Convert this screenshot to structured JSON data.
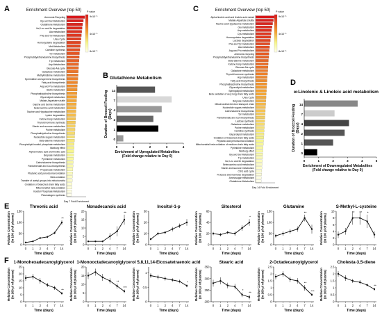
{
  "panels": {
    "A": "A",
    "B": "B",
    "C": "C",
    "D": "D",
    "E": "E",
    "F": "F"
  },
  "colors": {
    "enrich_high": "#d7191c",
    "enrich_mid": "#f3a030",
    "enrich_low": "#f6f68c",
    "enrich_vlow": "#ffffea",
    "bar_dark": "#333333",
    "line": "#111111"
  },
  "chart_data": [
    {
      "id": "A",
      "type": "bar",
      "orientation": "horizontal",
      "title": "Enrichment Overview (top 50)",
      "xlabel": "Day 7 Fold Enrichment",
      "legend": {
        "title": "P value",
        "ticks": [
          "9x10⁻¹",
          "4x10⁻¹",
          "8x10⁻¹"
        ],
        "placement": "top-right"
      },
      "categories": [
        "Ammonia Recycling",
        "Gly and Ser Metabolism",
        "Glutathione Metabolism",
        "Val, Leu and Ile degradation",
        "Ala metabolism",
        "Phe and Tyr Metabolism",
        "Urea Cycle",
        "Homocysteine degradation",
        "Met Metabolism",
        "Carnitine synthesis",
        "Tyr metabolism",
        "Phosphatidylethanolamine biosynthesis",
        "Trp metabolism",
        "Asp Metabolism",
        "Glucose-Ala cycle",
        "Galactose metabolism",
        "Methylhistidine metabolism",
        "Spermidine and spermine biosynthesis",
        "Fatty acid biosynthesis",
        "Arg and Pro metabolism",
        "Biotin metabolism",
        "Phosphatidylcholine biosynthesis",
        "Glycerolipid metabolism",
        "Malate-Aspartate shuttle",
        "Glycine and Serine metabolism",
        "Selenoamino acid metabolism",
        "Taurine and Hypotaurine metabolism",
        "Lysine degradation",
        "Ketone body metabolism",
        "Thyroid hormone synthesis",
        "Starch and sucrose metabolism",
        "Purine metabolism",
        "Phosphatidylcholine biosynthesis",
        "Nucleotide sugars metabolism",
        "Beta-alanine metabolism",
        "Phospholipid inositol phosphate metabolism",
        "Warburg effect",
        "Alpha linoleic acid and linoleic acid",
        "Butyrate metabolism",
        "Pyrimidine metabolism",
        "Catecholamine biosynthesis",
        "Pantothenate and CoA biosynthesis",
        "Propanoate metabolism",
        "Phytanic acid peroxisomal oxidation",
        "Beta oxidation",
        "Transfer of acetyl groups into mitochondria",
        "Oxidation of branched chain fatty acids",
        "Mitochondrial beta oxidation",
        "Inositol Phosphate Metabolism",
        "Plasmalogen synthesis"
      ],
      "values": [
        9.3,
        8.6,
        8.2,
        8.0,
        7.8,
        7.6,
        7.4,
        7.2,
        7.0,
        6.8,
        6.6,
        6.5,
        6.4,
        6.2,
        6.1,
        6.0,
        5.9,
        5.8,
        5.6,
        5.5,
        5.4,
        5.3,
        5.2,
        5.1,
        5.0,
        4.9,
        4.8,
        4.7,
        4.6,
        4.5,
        4.4,
        4.3,
        4.2,
        4.1,
        4.0,
        3.9,
        3.8,
        3.7,
        3.6,
        3.5,
        3.4,
        3.3,
        3.2,
        3.1,
        3.0,
        2.9,
        2.8,
        2.7,
        2.6,
        2.5
      ],
      "xlim": [
        0,
        10
      ]
    },
    {
      "id": "B",
      "type": "bar",
      "orientation": "horizontal",
      "title": "Glutathione Metabolism",
      "xlabel": "Enrichment of Upregulated Metabolites",
      "xlabel2": "(Fold change relative to Day 0)",
      "ylabel": "Duration of Broccoli Feeding",
      "ylabel2": "(Days)",
      "categories": [
        "14",
        "7",
        "4",
        "2",
        "1",
        "0"
      ],
      "values": [
        2.3,
        3.3,
        2.7,
        2.2,
        2.5,
        0.4
      ],
      "bar_colors": [
        "#555555",
        "#d8d8d8",
        "#999999",
        "#666666",
        "#000000",
        "#999999"
      ],
      "xticks": [
        "0",
        "1",
        "2",
        "3",
        "4"
      ],
      "xlim": [
        0,
        4
      ]
    },
    {
      "id": "C",
      "type": "bar",
      "orientation": "horizontal",
      "title": "Enrichment Overview (top 50)",
      "xlabel": "Day 14 Fold Enrichment",
      "legend": {
        "title": "P value",
        "ticks": [
          "9x10⁻¹",
          "4x10⁻¹",
          "8x10⁻¹"
        ],
        "placement": "top-right"
      },
      "categories": [
        "Alpha linoleic acid and linoleic acid metab",
        "Malate-Aspartate shuttle",
        "Taurine and Hypotaurine metabolism",
        "Glu metabolism",
        "Asp metabolism",
        "Cys metabolism",
        "Homocysteine degradation",
        "Lactose degradation",
        "Phe and Tyr metabolism",
        "Ala metabolism",
        "Arg and Pro metabolism",
        "Ammonia recycling",
        "Phosphatidylethanolamine biosynthesis",
        "Beta-alanine metabolism",
        "Ketone body metabolism",
        "Glucose-Ala cycle",
        "Galactose metabolism",
        "Thyroid hormone synthesis",
        "Asp metabolism",
        "Fatty acid biosynthesis",
        "Phosphatidylcholine biosynthesis",
        "Glycerolipid metabolism",
        "Sphingolipid metabolism",
        "Beta oxidation of very long chain fatty acids",
        "Urea Cycle",
        "Butyrate metabolism",
        "Mitochondrial electron transport chain",
        "Nucleotide sugars metabolism",
        "Catecholamine biosynthesis",
        "Tyr metabolism",
        "Pantothenate and CoA biosynthesis",
        "Lactose synthesis",
        "Galactose metabolism",
        "Purine metabolism",
        "Carnitine synthesis",
        "Glycerolipid metabolism",
        "Oxidation of branched chain fatty acids",
        "Phytanic acid peroxisomal oxidation",
        "Mitochondrial beta oxidation of medium chain fatty acids",
        "Pyrimidine metabolism",
        "Warburg effect",
        "Gly and Ser Metabolism",
        "Trp metabolism",
        "Val, Leu and Ile degradation",
        "Selenoamino acid metabolism",
        "Starch and sucrose metabolism",
        "Citric acid cycle",
        "Fructose and mannose degradation",
        "Aminosugar metabolism",
        "Glutathione Metabolism"
      ],
      "values": [
        9.8,
        9.2,
        8.8,
        8.5,
        8.2,
        8.0,
        7.8,
        7.6,
        7.4,
        7.2,
        7.0,
        6.9,
        6.8,
        6.6,
        6.5,
        6.4,
        6.3,
        6.2,
        6.0,
        5.9,
        5.8,
        5.7,
        5.6,
        5.5,
        5.4,
        5.3,
        5.2,
        5.1,
        5.0,
        4.9,
        4.8,
        4.7,
        4.6,
        4.5,
        4.4,
        4.3,
        4.2,
        4.1,
        4.0,
        3.9,
        3.8,
        3.7,
        3.6,
        3.5,
        3.4,
        3.3,
        3.2,
        3.1,
        3.0,
        2.9
      ],
      "xlim": [
        0,
        10
      ]
    },
    {
      "id": "D",
      "type": "bar",
      "orientation": "horizontal",
      "title": "α-Linolenic & Linoleic acid metabolism",
      "xlabel": "Enrichment of Downregulated Metabolites",
      "xlabel2": "(Fold change relative to Day 0)",
      "ylabel": "Duration of Broccoli Feeding",
      "ylabel2": "(Days)",
      "categories": [
        "14",
        "7",
        "4",
        "2",
        "1",
        "0"
      ],
      "values": [
        3.7,
        2.1,
        3.1,
        2.8,
        2.0,
        0.9
      ],
      "bar_colors": [
        "#888888",
        "#cccccc",
        "#444444",
        "#555555",
        "#555555",
        "#000000"
      ],
      "xticks": [
        "0",
        "1",
        "2",
        "3",
        "4",
        "5"
      ],
      "xlim": [
        0,
        5
      ]
    },
    {
      "id": "E1",
      "type": "line",
      "title": "Threonic acid",
      "x": [
        0,
        1,
        2,
        4,
        7,
        14
      ],
      "xticks": [
        "0",
        "1",
        "2",
        "4",
        "7",
        "14"
      ],
      "y": [
        10,
        15,
        30,
        35,
        53,
        100
      ],
      "err": [
        3,
        3,
        4,
        5,
        6,
        10
      ],
      "yticks": [
        0,
        50,
        100,
        150
      ],
      "ylim": [
        0,
        150
      ],
      "xlabel": "Time (days)",
      "ylabel": "Relative Concentration",
      "ylabel2": "(in 100 µl of plasma)",
      "annotations": [
        {
          "index": 5,
          "text": "**"
        }
      ]
    },
    {
      "id": "E2",
      "type": "line",
      "title": "Nonadecanoic acid",
      "x": [
        0,
        1,
        2,
        4,
        7,
        14
      ],
      "xticks": [
        "0",
        "1",
        "2",
        "4",
        "7",
        "14"
      ],
      "y": [
        2,
        2,
        2,
        5,
        8,
        15
      ],
      "err": [
        0.5,
        0.5,
        0.5,
        2,
        3,
        3
      ],
      "yticks": [
        0,
        5,
        10,
        15,
        20
      ],
      "ylim": [
        0,
        20
      ],
      "xlabel": "Time (days)",
      "ylabel": "Relative Concentration",
      "ylabel2": "(in 100 µl of plasma)",
      "annotations": [
        {
          "index": 5,
          "text": "**"
        }
      ]
    },
    {
      "id": "E3",
      "type": "line",
      "title": "Inositol-1-p",
      "x": [
        0,
        1,
        2,
        4,
        7,
        14
      ],
      "xticks": [
        "0",
        "1",
        "2",
        "4",
        "7",
        "14"
      ],
      "y": [
        5,
        10,
        11,
        14,
        17,
        20
      ],
      "err": [
        1,
        1.5,
        1.5,
        2,
        2,
        3
      ],
      "yticks": [
        0,
        10,
        20,
        30
      ],
      "ylim": [
        0,
        30
      ],
      "xlabel": "Time (days)",
      "ylabel": "Relative Concentration",
      "ylabel2": "(in 100 µl of plasma)",
      "annotations": []
    },
    {
      "id": "E4",
      "type": "line",
      "title": "Sitosterol",
      "x": [
        0,
        1,
        2,
        4,
        7,
        14
      ],
      "xticks": [
        "0",
        "1",
        "2",
        "4",
        "7",
        "14"
      ],
      "y": [
        20,
        18,
        22,
        20,
        30,
        40
      ],
      "err": [
        3,
        3,
        3,
        4,
        5,
        6
      ],
      "yticks": [
        0,
        20,
        40,
        60
      ],
      "ylim": [
        0,
        60
      ],
      "xlabel": "Time (days)",
      "ylabel": "Relative Concentration",
      "ylabel2": "(in 100 µl of plasma)",
      "annotations": [
        {
          "index": 5,
          "text": "*"
        }
      ]
    },
    {
      "id": "E5",
      "type": "line",
      "title": "Glutamine",
      "x": [
        0,
        1,
        2,
        4,
        7,
        14
      ],
      "xticks": [
        "0",
        "1",
        "2",
        "4",
        "7",
        "14"
      ],
      "y": [
        40,
        50,
        60,
        70,
        120,
        70
      ],
      "err": [
        8,
        10,
        10,
        12,
        15,
        20
      ],
      "yticks": [
        0,
        50,
        100,
        150
      ],
      "ylim": [
        0,
        150
      ],
      "xlabel": "Time (days)",
      "ylabel": "Relative Concentration",
      "ylabel2": "(in 100 µl of plasma)",
      "annotations": [
        {
          "index": 4,
          "text": "**"
        }
      ]
    },
    {
      "id": "E6",
      "type": "line",
      "title": "S-Methyl-L-cysteine",
      "x": [
        0,
        1,
        2,
        4,
        7,
        14
      ],
      "xticks": [
        "0",
        "1",
        "2",
        "4",
        "7",
        "14"
      ],
      "y": [
        3,
        4,
        8,
        8,
        7,
        3
      ],
      "err": [
        1,
        1,
        2,
        2,
        2,
        1
      ],
      "yticks": [
        0,
        2,
        4,
        6,
        8,
        10
      ],
      "ylim": [
        0,
        10
      ],
      "xlabel": "Time (days)",
      "ylabel": "Relative Concentration",
      "ylabel2": "(in 100 µl of plasma)",
      "annotations": [
        {
          "index": 2,
          "text": "**"
        },
        {
          "index": 3,
          "text": "**"
        },
        {
          "index": 4,
          "text": "*"
        }
      ]
    },
    {
      "id": "F1",
      "type": "line",
      "title": "1-Monohexadecanoylglycerol",
      "x": [
        0,
        1,
        2,
        4,
        7,
        14
      ],
      "xticks": [
        "0",
        "1",
        "2",
        "4",
        "7",
        "14"
      ],
      "y": [
        17,
        18,
        15,
        12,
        10,
        6
      ],
      "err": [
        2,
        2,
        2,
        1.5,
        1.5,
        1
      ],
      "yticks": [
        0,
        5,
        10,
        15,
        20,
        25
      ],
      "ylim": [
        0,
        25
      ],
      "xlabel": "Time (days)",
      "ylabel": "Relative Concentration",
      "ylabel2": "(in 100 µl of plasma)",
      "annotations": [
        {
          "index": 5,
          "text": "**"
        }
      ]
    },
    {
      "id": "F2",
      "type": "line",
      "title": "1-Monooctadecanoylglycerol",
      "x": [
        0,
        1,
        2,
        4,
        7,
        14
      ],
      "xticks": [
        "0",
        "1",
        "2",
        "4",
        "7",
        "14"
      ],
      "y": [
        15,
        17,
        14,
        12,
        9,
        6
      ],
      "err": [
        2,
        2,
        2,
        1.5,
        1.5,
        1
      ],
      "yticks": [
        0,
        5,
        10,
        15,
        20
      ],
      "ylim": [
        0,
        20
      ],
      "xlabel": "Time (days)",
      "ylabel": "Relative Concentration",
      "ylabel2": "(in 100 µl of plasma)",
      "annotations": [
        {
          "index": 4,
          "text": "**"
        },
        {
          "index": 5,
          "text": "***"
        }
      ]
    },
    {
      "id": "F3",
      "type": "line",
      "title": "5,8,11,14-Eicosatetraenoic acid",
      "x": [
        0,
        1,
        2,
        4,
        7,
        14
      ],
      "xticks": [
        "0",
        "1",
        "2",
        "4",
        "7",
        "14"
      ],
      "y": [
        0.9,
        0.85,
        0.8,
        0.75,
        0.7,
        0.55
      ],
      "err": [
        0.08,
        0.08,
        0.07,
        0.06,
        0.06,
        0.05
      ],
      "yticks": [
        0,
        0.5,
        1.0
      ],
      "ylim": [
        0,
        1.2
      ],
      "xlabel": "Time (days)",
      "ylabel": "Relative Concentration",
      "ylabel2": "(in 100 µl of plasma)",
      "annotations": [
        {
          "index": 5,
          "text": "*"
        }
      ]
    },
    {
      "id": "F4",
      "type": "line",
      "title": "Stearic acid",
      "x": [
        0,
        1,
        2,
        4,
        7,
        14
      ],
      "xticks": [
        "0",
        "1",
        "2",
        "4",
        "7",
        "14"
      ],
      "y": [
        280,
        290,
        270,
        265,
        230,
        220
      ],
      "err": [
        15,
        15,
        12,
        12,
        10,
        10
      ],
      "yticks": [
        200,
        250,
        300,
        350
      ],
      "ylim": [
        200,
        350
      ],
      "xlabel": "Time (days)",
      "ylabel": "Relative Concentration",
      "ylabel2": "(in 100 µl of plasma)",
      "annotations": [
        {
          "index": 4,
          "text": "*"
        },
        {
          "index": 5,
          "text": "**"
        }
      ]
    },
    {
      "id": "F5",
      "type": "line",
      "title": "2-Octadecanoylglycerol",
      "x": [
        0,
        1,
        2,
        4,
        7,
        14
      ],
      "xticks": [
        "0",
        "1",
        "2",
        "4",
        "7",
        "14"
      ],
      "y": [
        1.8,
        2.0,
        1.6,
        1.5,
        1.0,
        0.5
      ],
      "err": [
        0.2,
        0.2,
        0.2,
        0.2,
        0.2,
        0.1
      ],
      "yticks": [
        0.0,
        0.5,
        1.0,
        1.5,
        2.0,
        2.5
      ],
      "ylim": [
        0,
        2.5
      ],
      "xlabel": "Time (days)",
      "ylabel": "Relative Concentration",
      "ylabel2": "(in 100 µl of plasma)",
      "annotations": [
        {
          "index": 4,
          "text": "**"
        },
        {
          "index": 5,
          "text": "***"
        }
      ]
    },
    {
      "id": "F6",
      "type": "line",
      "title": "Cholesta-3,5-diene",
      "x": [
        0,
        1,
        2,
        4,
        7,
        14
      ],
      "xticks": [
        "0",
        "1",
        "2",
        "4",
        "7",
        "14"
      ],
      "y": [
        2.0,
        1.7,
        1.5,
        1.4,
        1.2,
        0.9
      ],
      "err": [
        0.2,
        0.2,
        0.15,
        0.15,
        0.1,
        0.1
      ],
      "yticks": [
        0.0,
        0.5,
        1.0,
        1.5,
        2.0,
        2.5
      ],
      "ylim": [
        0,
        2.5
      ],
      "xlabel": "Time (days)",
      "ylabel": "Relative Concentration",
      "ylabel2": "(in 100 µl of plasma)",
      "annotations": [
        {
          "index": 5,
          "text": "**"
        }
      ]
    }
  ]
}
